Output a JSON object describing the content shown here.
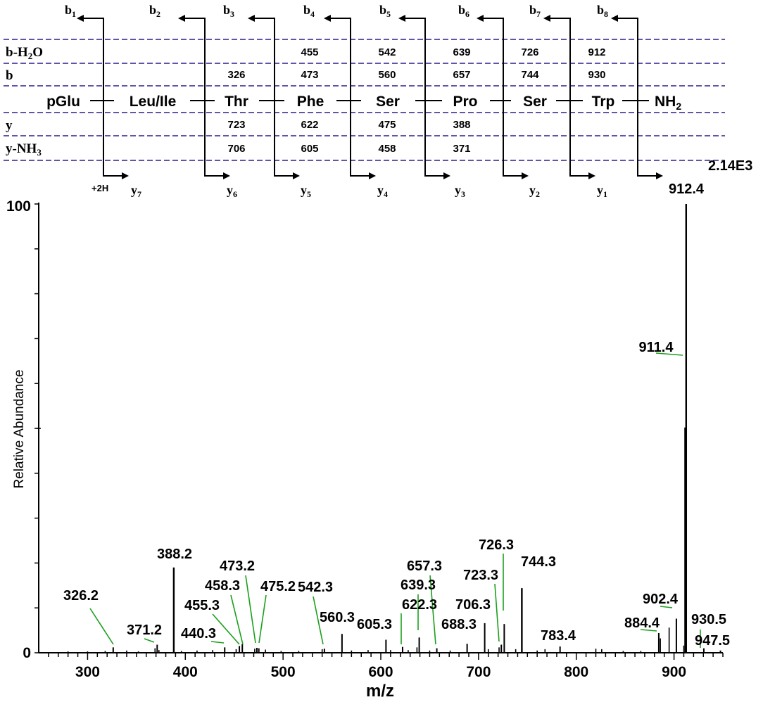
{
  "chart_data": {
    "type": "bar",
    "subtype": "mass-spectrum",
    "title": "",
    "intensity_label": "2.14E3",
    "xlabel": "m/z",
    "ylabel": "Relative Abundance",
    "xlim": [
      250,
      950
    ],
    "ylim": [
      0,
      100
    ],
    "x_ticks": [
      300,
      400,
      500,
      600,
      700,
      800,
      900
    ],
    "y_tick_labels": [
      0,
      100
    ],
    "grid": false,
    "colors": {
      "peak": "#000000",
      "leader": "#1aa01a",
      "dashed": "#2a1f8c"
    },
    "labeled_peaks": [
      {
        "mz": 326.2,
        "label": "326.2",
        "abundance": 1.2
      },
      {
        "mz": 371.2,
        "label": "371.2",
        "abundance": 1.8
      },
      {
        "mz": 388.2,
        "label": "388.2",
        "abundance": 19.0
      },
      {
        "mz": 440.3,
        "label": "440.3",
        "abundance": 1.2
      },
      {
        "mz": 455.3,
        "label": "455.3",
        "abundance": 1.5
      },
      {
        "mz": 458.3,
        "label": "458.3",
        "abundance": 1.9
      },
      {
        "mz": 473.2,
        "label": "473.2",
        "abundance": 1.1
      },
      {
        "mz": 475.2,
        "label": "475.2",
        "abundance": 1.0
      },
      {
        "mz": 542.3,
        "label": "542.3",
        "abundance": 0.9
      },
      {
        "mz": 560.3,
        "label": "560.3",
        "abundance": 4.2
      },
      {
        "mz": 605.3,
        "label": "605.3",
        "abundance": 2.9
      },
      {
        "mz": 622.3,
        "label": "622.3",
        "abundance": 1.3
      },
      {
        "mz": 639.3,
        "label": "639.3",
        "abundance": 3.4
      },
      {
        "mz": 657.3,
        "label": "657.3",
        "abundance": 1.0
      },
      {
        "mz": 688.3,
        "label": "688.3",
        "abundance": 2.0
      },
      {
        "mz": 706.3,
        "label": "706.3",
        "abundance": 6.6
      },
      {
        "mz": 723.3,
        "label": "723.3",
        "abundance": 1.8
      },
      {
        "mz": 726.3,
        "label": "726.3",
        "abundance": 6.4
      },
      {
        "mz": 744.3,
        "label": "744.3",
        "abundance": 14.4
      },
      {
        "mz": 783.4,
        "label": "783.4",
        "abundance": 1.4
      },
      {
        "mz": 884.4,
        "label": "884.4",
        "abundance": 4.4
      },
      {
        "mz": 902.4,
        "label": "902.4",
        "abundance": 7.6
      },
      {
        "mz": 911.4,
        "label": "911.4",
        "abundance": 50.2
      },
      {
        "mz": 912.4,
        "label": "912.4",
        "abundance": 100
      },
      {
        "mz": 930.5,
        "label": "930.5",
        "abundance": 1.0
      },
      {
        "mz": 947.5,
        "label": "947.5",
        "abundance": 0.5
      }
    ],
    "minor_peaks": [
      {
        "mz": 280,
        "abundance": 0.3
      },
      {
        "mz": 300,
        "abundance": 0.3
      },
      {
        "mz": 318,
        "abundance": 0.4
      },
      {
        "mz": 340,
        "abundance": 0.5
      },
      {
        "mz": 352,
        "abundance": 0.3
      },
      {
        "mz": 369,
        "abundance": 1.0
      },
      {
        "mz": 373,
        "abundance": 0.6
      },
      {
        "mz": 396,
        "abundance": 0.4
      },
      {
        "mz": 412,
        "abundance": 0.5
      },
      {
        "mz": 428,
        "abundance": 0.6
      },
      {
        "mz": 452,
        "abundance": 0.8
      },
      {
        "mz": 471,
        "abundance": 0.9
      },
      {
        "mz": 482,
        "abundance": 0.7
      },
      {
        "mz": 498,
        "abundance": 0.4
      },
      {
        "mz": 516,
        "abundance": 0.4
      },
      {
        "mz": 540,
        "abundance": 0.8
      },
      {
        "mz": 570,
        "abundance": 0.5
      },
      {
        "mz": 587,
        "abundance": 0.6
      },
      {
        "mz": 610,
        "abundance": 0.6
      },
      {
        "mz": 628,
        "abundance": 0.6
      },
      {
        "mz": 637,
        "abundance": 1.2
      },
      {
        "mz": 650,
        "abundance": 0.5
      },
      {
        "mz": 671,
        "abundance": 0.5
      },
      {
        "mz": 710,
        "abundance": 0.8
      },
      {
        "mz": 721,
        "abundance": 1.2
      },
      {
        "mz": 738,
        "abundance": 0.8
      },
      {
        "mz": 760,
        "abundance": 0.5
      },
      {
        "mz": 768,
        "abundance": 0.8
      },
      {
        "mz": 820,
        "abundance": 0.9
      },
      {
        "mz": 826,
        "abundance": 0.8
      },
      {
        "mz": 848,
        "abundance": 0.4
      },
      {
        "mz": 866,
        "abundance": 0.4
      },
      {
        "mz": 886,
        "abundance": 3.2
      },
      {
        "mz": 895,
        "abundance": 5.6
      },
      {
        "mz": 910,
        "abundance": 1.6
      }
    ]
  },
  "fragment_map": {
    "residues": [
      "pGlu",
      "Leu/Ile",
      "Thr",
      "Phe",
      "Ser",
      "Pro",
      "Ser",
      "Trp",
      "NH2"
    ],
    "b_ions": [
      "b1",
      "b2",
      "b3",
      "b4",
      "b5",
      "b6",
      "b7",
      "b8"
    ],
    "y_ions": [
      "y7",
      "y6",
      "y5",
      "y4",
      "y3",
      "y2",
      "y1"
    ],
    "plus_2h_label": "+2H",
    "rows": [
      {
        "label": "b-H2O",
        "values": [
          "",
          "",
          "",
          "455",
          "542",
          "639",
          "726",
          "912",
          ""
        ]
      },
      {
        "label": "b",
        "values": [
          "",
          "",
          "326",
          "473",
          "560",
          "657",
          "744",
          "930",
          ""
        ]
      },
      {
        "label": "y",
        "values": [
          "",
          "",
          "723",
          "622",
          "475",
          "388",
          "",
          "",
          ""
        ]
      },
      {
        "label": "y-NH3",
        "values": [
          "",
          "",
          "706",
          "605",
          "458",
          "371",
          "",
          "",
          ""
        ]
      }
    ]
  }
}
